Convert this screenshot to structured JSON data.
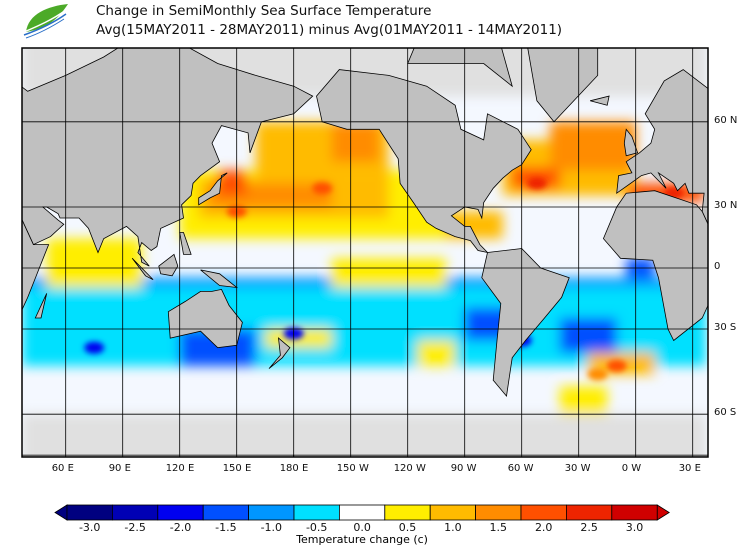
{
  "title": {
    "line1": "Change in SemiMonthly Sea Surface Temperature",
    "line2": "Avg(15MAY2011 - 28MAY2011) minus Avg(01MAY2011 - 14MAY2011)"
  },
  "logo": {
    "text": "NOAA"
  },
  "map": {
    "projection": "mercator",
    "land_color": "#c0c0c0",
    "ice_color": "#e0e0e0",
    "lon_labels": [
      "60 E",
      "90 E",
      "120 E",
      "150 E",
      "180 E",
      "150 W",
      "120 W",
      "90 W",
      "60 W",
      "30 W",
      "0 W",
      "30 E"
    ],
    "lat_labels": [
      "60 N",
      "30 N",
      "0",
      "30 S",
      "60 S"
    ]
  },
  "colorbar": {
    "title": "Temperature change  (c)",
    "ticks": [
      "-3.0",
      "-2.5",
      "-2.0",
      "-1.5",
      "-1.0",
      "-0.5",
      "0.0",
      "0.5",
      "1.0",
      "1.5",
      "2.0",
      "2.5",
      "3.0"
    ],
    "colors": [
      "#000080",
      "#0000b4",
      "#0000f0",
      "#0050ff",
      "#0096ff",
      "#00e0ff",
      "#ffffff",
      "#ffee00",
      "#ffbb00",
      "#ff8c00",
      "#ff5000",
      "#ee2400",
      "#d00000"
    ]
  }
}
